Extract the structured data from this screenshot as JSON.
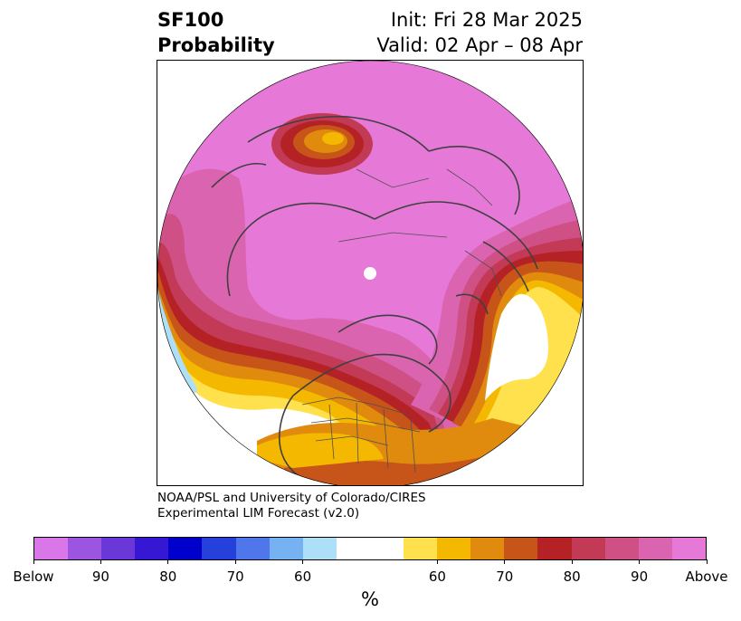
{
  "title": {
    "left_line1": "SF100",
    "left_line2": "Probability",
    "right_line1": "Init: Fri 28 Mar 2025",
    "right_line2": "Valid: 02 Apr – 08 Apr"
  },
  "credit": {
    "line1": "NOAA/PSL and University of Colorado/CIRES",
    "line2": "Experimental LIM Forecast (v2.0)"
  },
  "colorbar": {
    "unit": "%",
    "colors": [
      "#d977e8",
      "#9b55e0",
      "#6b37d9",
      "#3517d4",
      "#0000cc",
      "#2640db",
      "#4f77eb",
      "#76b2f2",
      "#addff9",
      "#ffffff",
      "#ffe14d",
      "#f5b800",
      "#e08a0e",
      "#c75419",
      "#b52226",
      "#c23a55",
      "#cf5085",
      "#db64b0",
      "#e678d8"
    ],
    "tick_labels": [
      "Below",
      "90",
      "80",
      "70",
      "60",
      "60",
      "70",
      "80",
      "90",
      "Above"
    ]
  },
  "map": {
    "palette": {
      "above_90": "#e678d8",
      "above_85": "#db64b0",
      "above_80": "#cf5085",
      "above_75": "#c23a55",
      "above_70": "#b52226",
      "above_65": "#c75419",
      "above_60": "#e08a0e",
      "above_55": "#f5b800",
      "above_50": "#ffe14d",
      "below_55": "#addff9"
    }
  }
}
